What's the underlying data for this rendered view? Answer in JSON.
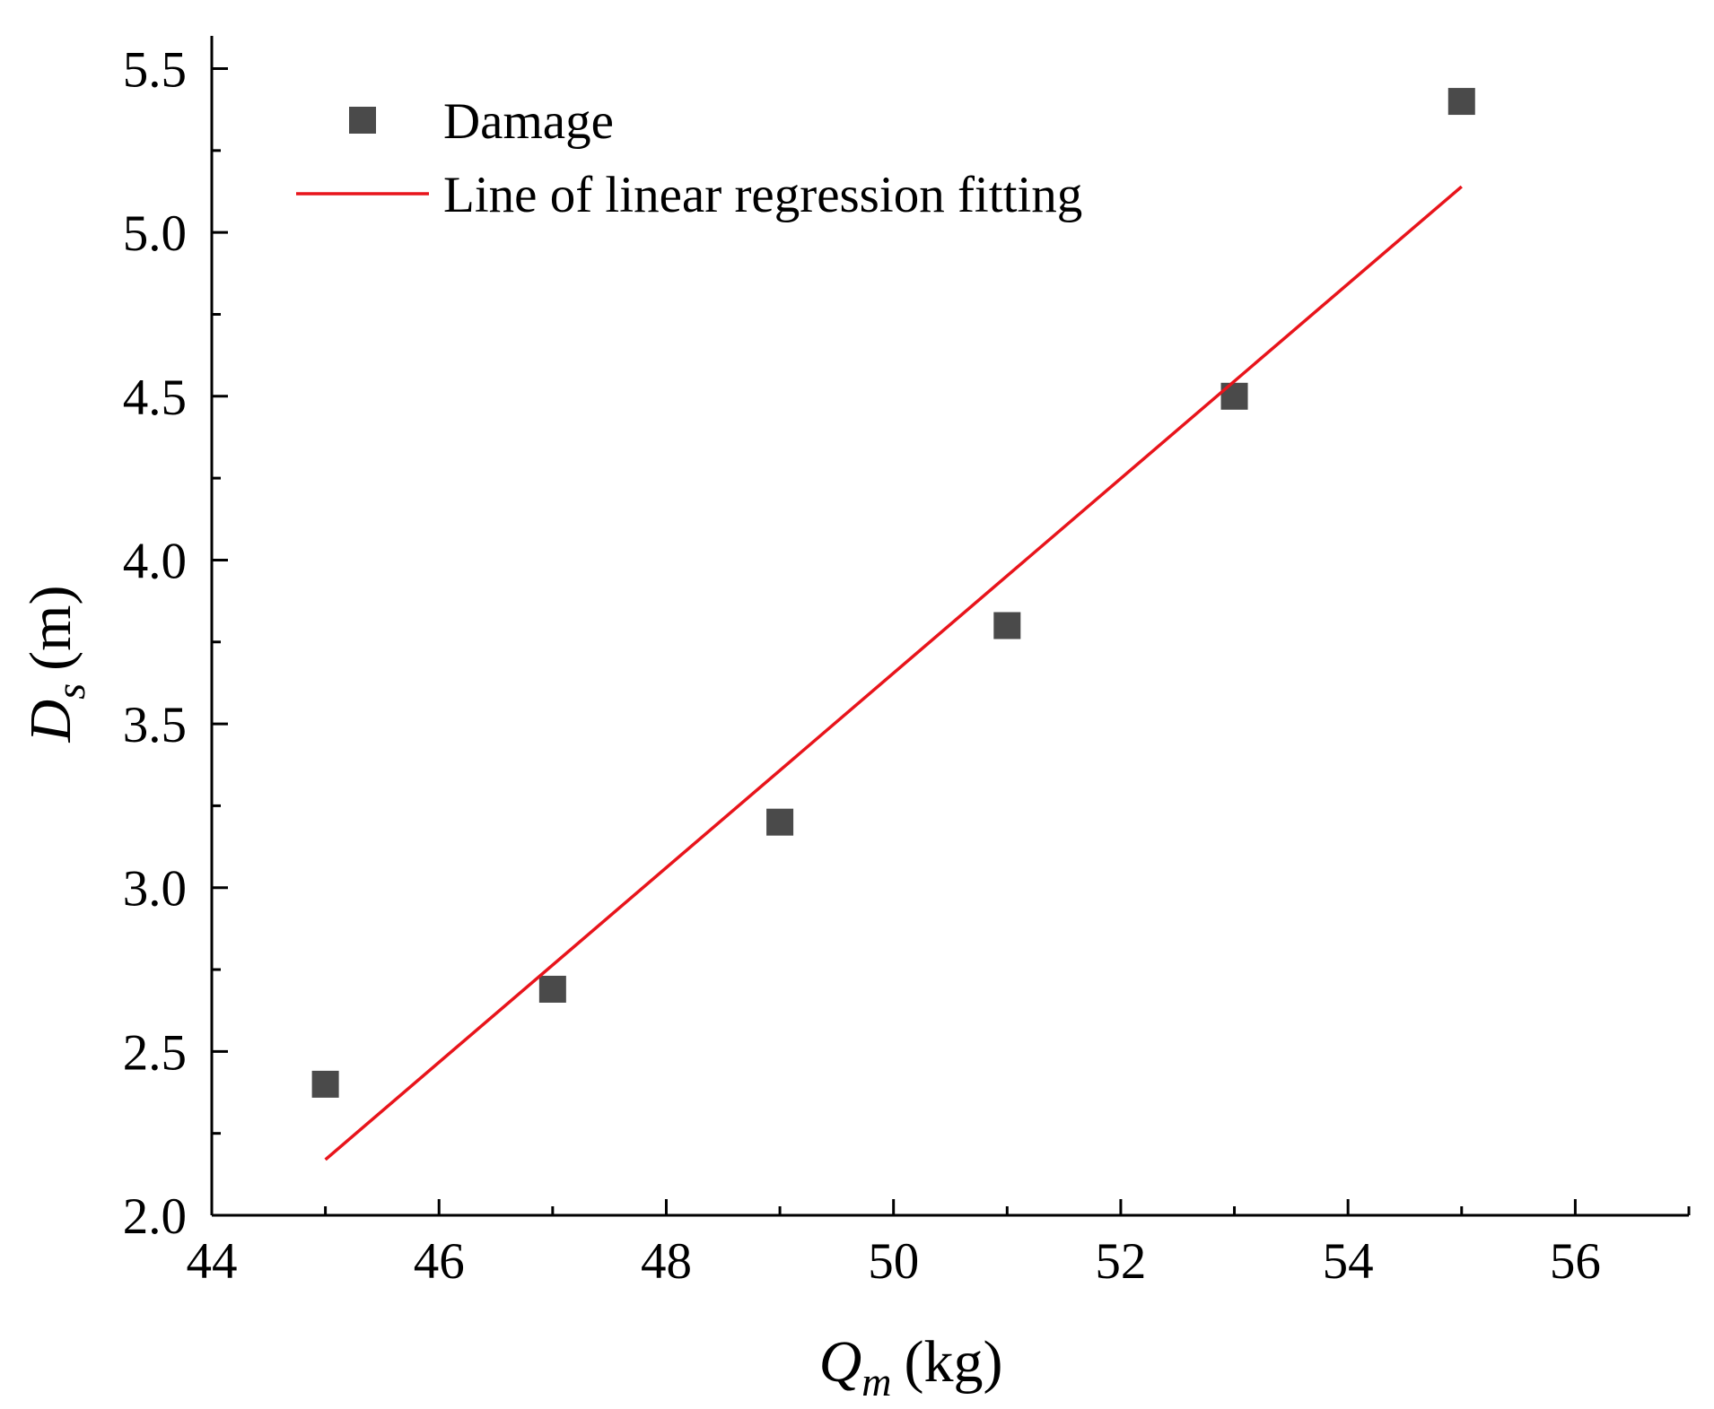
{
  "chart_data": {
    "type": "scatter",
    "title": "",
    "xlabel": {
      "main": "Q",
      "sub": "m",
      "unit": "(kg)"
    },
    "ylabel": {
      "main": "D",
      "sub": "s",
      "unit": "(m)"
    },
    "xlim": [
      44,
      57
    ],
    "ylim": [
      2.0,
      5.6
    ],
    "xticks": [
      44,
      46,
      48,
      50,
      52,
      54,
      56
    ],
    "xtick_labels": [
      "44",
      "46",
      "48",
      "50",
      "52",
      "54",
      "56"
    ],
    "yticks": [
      2.0,
      2.5,
      3.0,
      3.5,
      4.0,
      4.5,
      5.0,
      5.5
    ],
    "ytick_labels": [
      "2.0",
      "2.5",
      "3.0",
      "3.5",
      "4.0",
      "4.5",
      "5.0",
      "5.5"
    ],
    "grid": false,
    "legend_position": "top-left",
    "series": [
      {
        "name": "Damage",
        "kind": "scatter",
        "marker": "square",
        "color": "#4a4a4a",
        "x": [
          45,
          47,
          49,
          51,
          53,
          55
        ],
        "y": [
          2.4,
          2.69,
          3.2,
          3.8,
          4.5,
          5.4
        ]
      },
      {
        "name": "Line of linear regression fitting",
        "kind": "line",
        "color": "#e8141b",
        "x": [
          45,
          55
        ],
        "y": [
          2.17,
          5.14
        ]
      }
    ]
  }
}
